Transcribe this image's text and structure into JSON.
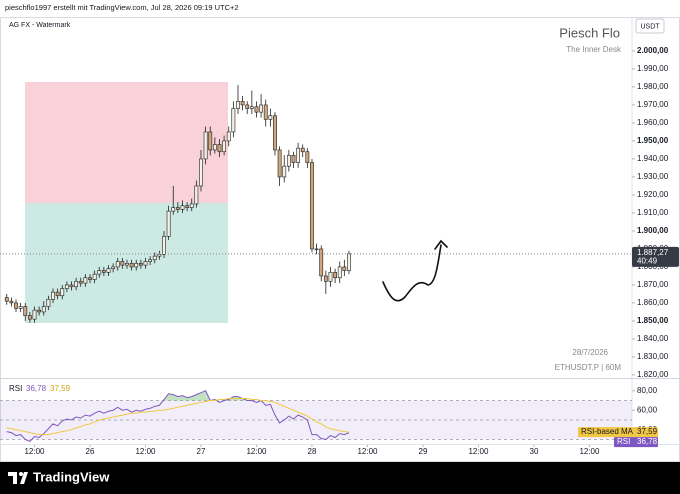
{
  "header": {
    "caption": "pieschflo1997 erstellt mit TradingView.com, Jul 28, 2026 09:19 UTC+2"
  },
  "footer": {
    "brand": "TradingView"
  },
  "chart_data": [
    {
      "type": "candlestick",
      "watermark": "AG FX - Watermark",
      "author": "Piesch Flo",
      "subtitle": "The Inner Desk",
      "date": "28/7/2026",
      "symbol": "ETHUSDT.P | 60M",
      "currency": "USDT",
      "x": [
        -18,
        -17,
        -16,
        -15,
        -14,
        -13,
        -12,
        -11,
        -10,
        -9,
        -8,
        -7,
        -6,
        -5,
        -4,
        -3,
        -2,
        -1,
        0,
        1,
        2,
        3,
        4,
        5,
        6,
        7,
        8,
        9,
        10,
        11,
        12,
        13,
        14,
        15,
        16,
        17,
        18,
        19,
        20,
        21,
        22,
        23,
        24,
        25,
        26,
        27,
        28,
        29,
        30,
        31,
        32,
        33,
        34,
        35,
        36,
        37,
        38,
        39,
        40,
        41,
        42,
        43,
        44,
        45,
        46,
        47,
        48,
        49,
        50,
        51,
        52,
        53,
        54,
        55,
        56
      ],
      "open": [
        1863,
        1861,
        1860,
        1857,
        1858,
        1853,
        1851,
        1856,
        1855,
        1858,
        1862,
        1866,
        1864,
        1868,
        1870,
        1869,
        1872,
        1871,
        1874,
        1873,
        1876,
        1878,
        1877,
        1879,
        1880,
        1883,
        1881,
        1882,
        1880,
        1882,
        1881,
        1883,
        1884,
        1886,
        1887,
        1897,
        1911,
        1913,
        1912,
        1914,
        1913,
        1915,
        1925,
        1940,
        1955,
        1945,
        1948,
        1944,
        1950,
        1955,
        1968,
        1972,
        1970,
        1968,
        1969,
        1966,
        1970,
        1962,
        1964,
        1945,
        1930,
        1936,
        1942,
        1938,
        1946,
        1944,
        1938,
        1890,
        1890,
        1875,
        1872,
        1877,
        1874,
        1880,
        1878
      ],
      "high": [
        1865,
        1863,
        1862,
        1860,
        1860,
        1855,
        1858,
        1858,
        1861,
        1864,
        1868,
        1868,
        1870,
        1872,
        1872,
        1874,
        1874,
        1876,
        1876,
        1878,
        1880,
        1880,
        1881,
        1882,
        1885,
        1885,
        1884,
        1884,
        1884,
        1884,
        1885,
        1886,
        1888,
        1889,
        1900,
        1914,
        1925,
        1916,
        1917,
        1916,
        1918,
        1928,
        1945,
        1958,
        1958,
        1952,
        1951,
        1953,
        1958,
        1972,
        1981,
        1975,
        1972,
        1978,
        1972,
        1976,
        1973,
        1968,
        1966,
        1947,
        1942,
        1945,
        1944,
        1949,
        1948,
        1946,
        1940,
        1893,
        1892,
        1878,
        1880,
        1879,
        1883,
        1884,
        1889
      ],
      "low": [
        1859,
        1858,
        1855,
        1855,
        1850,
        1849,
        1849,
        1853,
        1853,
        1856,
        1860,
        1862,
        1862,
        1866,
        1867,
        1867,
        1869,
        1869,
        1871,
        1871,
        1874,
        1875,
        1875,
        1877,
        1878,
        1879,
        1879,
        1878,
        1878,
        1879,
        1879,
        1881,
        1882,
        1884,
        1885,
        1895,
        1909,
        1910,
        1910,
        1911,
        1911,
        1913,
        1922,
        1937,
        1942,
        1943,
        1941,
        1942,
        1947,
        1952,
        1965,
        1967,
        1965,
        1965,
        1963,
        1963,
        1958,
        1958,
        1942,
        1925,
        1927,
        1933,
        1935,
        1935,
        1941,
        1935,
        1888,
        1887,
        1872,
        1865,
        1869,
        1871,
        1871,
        1875,
        1876
      ],
      "close": [
        1861,
        1860,
        1857,
        1858,
        1853,
        1851,
        1856,
        1855,
        1858,
        1862,
        1866,
        1864,
        1868,
        1870,
        1869,
        1872,
        1871,
        1874,
        1873,
        1876,
        1878,
        1877,
        1879,
        1880,
        1883,
        1881,
        1882,
        1880,
        1882,
        1881,
        1883,
        1884,
        1886,
        1887,
        1897,
        1911,
        1913,
        1912,
        1914,
        1913,
        1915,
        1925,
        1940,
        1955,
        1945,
        1948,
        1944,
        1950,
        1955,
        1968,
        1972,
        1970,
        1968,
        1969,
        1966,
        1970,
        1962,
        1964,
        1945,
        1930,
        1936,
        1942,
        1938,
        1946,
        1944,
        1938,
        1890,
        1890,
        1875,
        1872,
        1877,
        1874,
        1880,
        1878,
        1887.27
      ],
      "up_color": "#f6f1e7",
      "down_color": "#d2a57a",
      "wick_color": "#1e1e1e",
      "last_value_label": "1.887,27",
      "countdown": "40:49",
      "xlim": [
        -19.46,
        117.2
      ],
      "xticks": [
        {
          "value": -12,
          "label": "12:00"
        },
        {
          "value": 0,
          "label": "26"
        },
        {
          "value": 12,
          "label": "12:00"
        },
        {
          "value": 24,
          "label": "27"
        },
        {
          "value": 36,
          "label": "12:00"
        },
        {
          "value": 48,
          "label": "28"
        },
        {
          "value": 60,
          "label": "12:00"
        },
        {
          "value": 72,
          "label": "29"
        },
        {
          "value": 84,
          "label": "12:00"
        },
        {
          "value": 96,
          "label": "30"
        },
        {
          "value": 108,
          "label": "12:00"
        }
      ],
      "ylim": [
        1818.3,
        2018.3
      ],
      "yticks": [
        {
          "value": 1820,
          "label": "1.820,00"
        },
        {
          "value": 1830,
          "label": "1.830,00"
        },
        {
          "value": 1840,
          "label": "1.840,00"
        },
        {
          "value": 1850,
          "label": "1.850,00"
        },
        {
          "value": 1860,
          "label": "1.860,00"
        },
        {
          "value": 1870,
          "label": "1.870,00"
        },
        {
          "value": 1880,
          "label": "1.880,00"
        },
        {
          "value": 1890,
          "label": "1.890,00"
        },
        {
          "value": 1900,
          "label": "1.900,00"
        },
        {
          "value": 1910,
          "label": "1.910,00"
        },
        {
          "value": 1920,
          "label": "1.920,00"
        },
        {
          "value": 1930,
          "label": "1.930,00"
        },
        {
          "value": 1940,
          "label": "1.940,00"
        },
        {
          "value": 1950,
          "label": "1.950,00"
        },
        {
          "value": 1960,
          "label": "1.960,00"
        },
        {
          "value": 1970,
          "label": "1.970,00"
        },
        {
          "value": 1980,
          "label": "1.980,00"
        },
        {
          "value": 1990,
          "label": "1.990,00"
        },
        {
          "value": 2000,
          "label": "2.000,00"
        }
      ]
    },
    {
      "type": "line",
      "title": "RSI",
      "x": [
        -18,
        -17,
        -16,
        -15,
        -14,
        -13,
        -12,
        -11,
        -10,
        -9,
        -8,
        -7,
        -6,
        -5,
        -4,
        -3,
        -2,
        -1,
        0,
        1,
        2,
        3,
        4,
        5,
        6,
        7,
        8,
        9,
        10,
        11,
        12,
        13,
        14,
        15,
        16,
        17,
        18,
        19,
        20,
        21,
        22,
        23,
        24,
        25,
        26,
        27,
        28,
        29,
        30,
        31,
        32,
        33,
        34,
        35,
        36,
        37,
        38,
        39,
        40,
        41,
        42,
        43,
        44,
        45,
        46,
        47,
        48,
        49,
        50,
        51,
        52,
        53,
        54,
        55,
        56
      ],
      "series": [
        {
          "name": "RSI",
          "color": "#7e57c2",
          "last_value_label": "36,78",
          "values": [
            38,
            37,
            34,
            35,
            30,
            28,
            33,
            32,
            36,
            41,
            46,
            44,
            49,
            51,
            50,
            53,
            52,
            55,
            54,
            57,
            59,
            57,
            59,
            60,
            63,
            60,
            61,
            58,
            60,
            59,
            61,
            62,
            64,
            65,
            71,
            77,
            76,
            74,
            75,
            73,
            74,
            76,
            78,
            80,
            70,
            71,
            68,
            70,
            71,
            74,
            74,
            72,
            70,
            70,
            68,
            70,
            65,
            66,
            55,
            47,
            50,
            54,
            51,
            55,
            53,
            50,
            35,
            35,
            31,
            30,
            34,
            32,
            36,
            35,
            36.78
          ]
        },
        {
          "name": "RSI-based MA",
          "color": "#f2c744",
          "last_value_label": "37,59",
          "values": [
            42,
            41,
            40,
            39,
            38,
            37,
            36,
            35,
            35,
            35,
            36,
            37,
            38,
            39,
            40,
            42,
            43,
            45,
            46,
            48,
            50,
            51,
            52,
            53,
            54,
            55,
            56,
            57,
            57,
            58,
            58,
            59,
            59,
            60,
            60,
            61,
            62,
            63,
            64,
            65,
            66,
            67,
            68,
            69,
            70,
            70,
            71,
            71,
            72,
            72,
            72,
            72,
            72,
            71,
            71,
            70,
            70,
            69,
            68,
            66,
            64,
            62,
            60,
            58,
            56,
            54,
            51,
            48,
            46,
            43,
            41,
            40,
            39,
            38,
            37.59
          ]
        }
      ],
      "ylim": [
        27.4,
        90
      ],
      "yticks": [
        {
          "value": 40,
          "label": "40,00"
        },
        {
          "value": 60,
          "label": "60,00"
        },
        {
          "value": 80,
          "label": "80,00"
        }
      ],
      "levels": [
        30,
        50,
        70
      ]
    }
  ]
}
